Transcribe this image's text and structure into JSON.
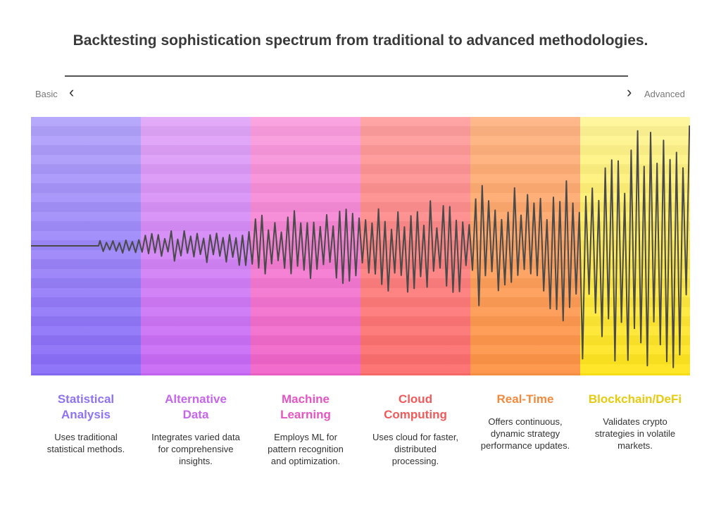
{
  "title": "Backtesting sophistication spectrum from traditional to advanced methodologies.",
  "scale": {
    "start_label": "Basic",
    "end_label": "Advanced",
    "left_icon": "chevron-left-icon",
    "right_icon": "chevron-right-icon"
  },
  "stages": [
    {
      "name": "Statistical Analysis",
      "description": "Uses traditional statistical methods.",
      "color": "#8f73f2",
      "top_color": "#b3a4fb",
      "bottom_color": "#876bf8"
    },
    {
      "name": "Alternative Data",
      "description": "Integrates varied data for comprehensive insights.",
      "color": "#c766ec",
      "top_color": "#e1a7f8",
      "bottom_color": "#c767f5"
    },
    {
      "name": "Machine Learning",
      "description": "Employs ML for pattern recognition and optimization.",
      "color": "#e555c3",
      "top_color": "#fa9fdf",
      "bottom_color": "#f062c8"
    },
    {
      "name": "Cloud Computing",
      "description": "Uses cloud for faster, distributed processing.",
      "color": "#f15a5a",
      "top_color": "#ffa0a0",
      "bottom_color": "#fd6b6b"
    },
    {
      "name": "Real-Time",
      "description": "Offers continuous, dynamic strategy performance updates.",
      "color": "#f08a3e",
      "top_color": "#ffb585",
      "bottom_color": "#fe9243"
    },
    {
      "name": "Blockchain/DeFi",
      "description": "Validates crypto strategies in volatile markets.",
      "color": "#e6cb10",
      "top_color": "#fff59a",
      "bottom_color": "#ffe419"
    }
  ],
  "signal": {
    "amplitudes": [
      0,
      0.12,
      0.28,
      0.36,
      0.52,
      0.95
    ],
    "line_color": "#4a4a4a"
  }
}
